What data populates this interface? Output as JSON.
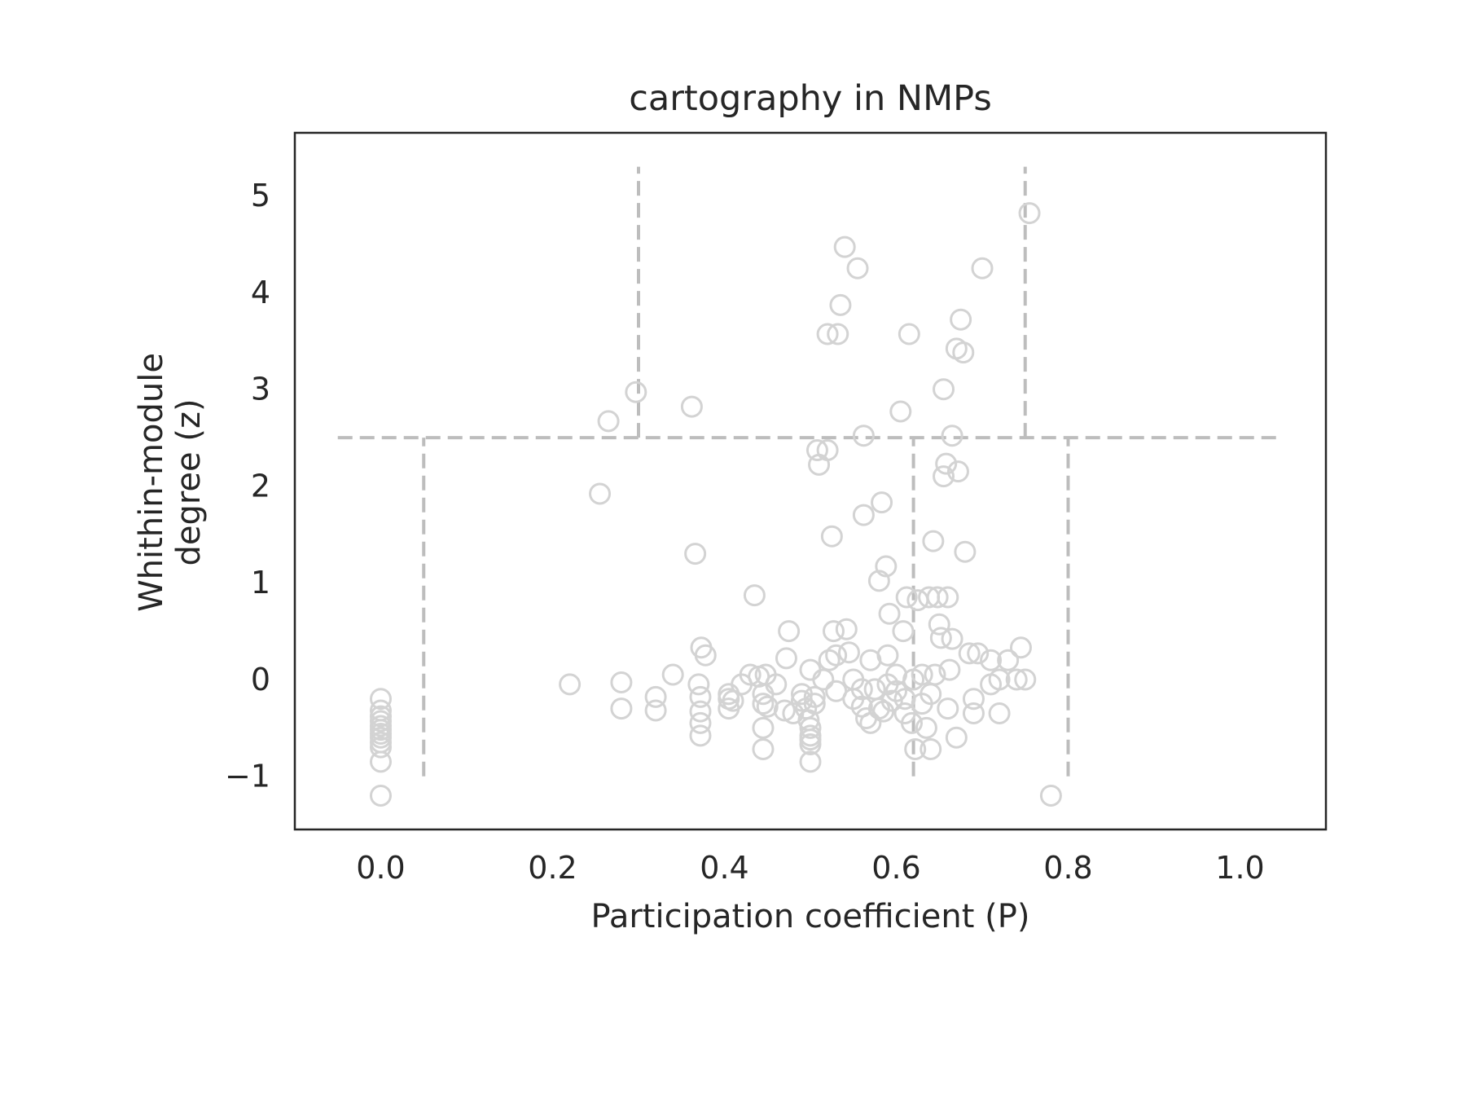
{
  "chart_data": {
    "type": "scatter",
    "title": "cartography in NMPs",
    "xlabel": "Participation coefficient (P)",
    "ylabel_lines": [
      "Whithin-module",
      "degree (z)"
    ],
    "xlim": [
      -0.1,
      1.1
    ],
    "ylim": [
      -1.55,
      5.65
    ],
    "xticks": [
      0.0,
      0.2,
      0.4,
      0.6,
      0.8,
      1.0
    ],
    "xtick_labels": [
      "0.0",
      "0.2",
      "0.4",
      "0.6",
      "0.8",
      "1.0"
    ],
    "yticks": [
      -1,
      0,
      1,
      2,
      3,
      4,
      5
    ],
    "ytick_labels": [
      "−1",
      "0",
      "1",
      "2",
      "3",
      "4",
      "5"
    ],
    "grid": false,
    "marker": "open-circle",
    "point_color": "#d3d3d3",
    "guide_color": "#bdbdbd",
    "guide_lines": [
      {
        "orientation": "horizontal",
        "y": 2.5,
        "x_from": -0.05,
        "x_to": 1.05
      },
      {
        "orientation": "vertical",
        "x": 0.05,
        "y_from": -1.0,
        "y_to": 2.5
      },
      {
        "orientation": "vertical",
        "x": 0.62,
        "y_from": -1.0,
        "y_to": 2.5
      },
      {
        "orientation": "vertical",
        "x": 0.8,
        "y_from": -1.0,
        "y_to": 2.5
      },
      {
        "orientation": "vertical",
        "x": 0.3,
        "y_from": 2.5,
        "y_to": 5.3
      },
      {
        "orientation": "vertical",
        "x": 0.75,
        "y_from": 2.5,
        "y_to": 5.3
      }
    ],
    "points": [
      [
        0.0,
        -0.2
      ],
      [
        0.0,
        -0.32
      ],
      [
        0.0,
        -0.38
      ],
      [
        0.0,
        -0.43
      ],
      [
        0.0,
        -0.48
      ],
      [
        0.0,
        -0.52
      ],
      [
        0.0,
        -0.56
      ],
      [
        0.0,
        -0.6
      ],
      [
        0.0,
        -0.65
      ],
      [
        0.0,
        -0.7
      ],
      [
        0.0,
        -0.85
      ],
      [
        0.0,
        -1.2
      ],
      [
        0.22,
        -0.05
      ],
      [
        0.255,
        1.92
      ],
      [
        0.265,
        2.67
      ],
      [
        0.28,
        -0.03
      ],
      [
        0.28,
        -0.3
      ],
      [
        0.297,
        2.97
      ],
      [
        0.32,
        -0.18
      ],
      [
        0.32,
        -0.32
      ],
      [
        0.34,
        0.05
      ],
      [
        0.362,
        2.82
      ],
      [
        0.366,
        1.3
      ],
      [
        0.37,
        -0.05
      ],
      [
        0.372,
        -0.18
      ],
      [
        0.372,
        -0.33
      ],
      [
        0.372,
        -0.45
      ],
      [
        0.372,
        -0.58
      ],
      [
        0.373,
        0.33
      ],
      [
        0.378,
        0.25
      ],
      [
        0.405,
        -0.15
      ],
      [
        0.405,
        -0.2
      ],
      [
        0.405,
        -0.3
      ],
      [
        0.41,
        -0.22
      ],
      [
        0.42,
        -0.05
      ],
      [
        0.43,
        0.05
      ],
      [
        0.435,
        0.87
      ],
      [
        0.44,
        0.03
      ],
      [
        0.445,
        -0.15
      ],
      [
        0.445,
        -0.25
      ],
      [
        0.445,
        -0.5
      ],
      [
        0.445,
        -0.72
      ],
      [
        0.448,
        0.05
      ],
      [
        0.45,
        -0.28
      ],
      [
        0.46,
        -0.05
      ],
      [
        0.47,
        -0.32
      ],
      [
        0.472,
        0.22
      ],
      [
        0.475,
        0.5
      ],
      [
        0.48,
        -0.35
      ],
      [
        0.49,
        -0.15
      ],
      [
        0.49,
        -0.22
      ],
      [
        0.495,
        -0.3
      ],
      [
        0.498,
        -0.42
      ],
      [
        0.5,
        -0.5
      ],
      [
        0.5,
        -0.58
      ],
      [
        0.5,
        -0.62
      ],
      [
        0.5,
        -0.67
      ],
      [
        0.5,
        -0.85
      ],
      [
        0.5,
        0.1
      ],
      [
        0.505,
        -0.18
      ],
      [
        0.505,
        -0.25
      ],
      [
        0.508,
        2.37
      ],
      [
        0.51,
        2.22
      ],
      [
        0.515,
        0.0
      ],
      [
        0.52,
        2.37
      ],
      [
        0.52,
        3.57
      ],
      [
        0.522,
        0.2
      ],
      [
        0.525,
        1.48
      ],
      [
        0.527,
        0.5
      ],
      [
        0.53,
        0.25
      ],
      [
        0.53,
        -0.12
      ],
      [
        0.532,
        3.57
      ],
      [
        0.535,
        3.87
      ],
      [
        0.54,
        4.47
      ],
      [
        0.542,
        0.52
      ],
      [
        0.545,
        0.28
      ],
      [
        0.55,
        0.0
      ],
      [
        0.55,
        -0.2
      ],
      [
        0.555,
        4.25
      ],
      [
        0.56,
        -0.28
      ],
      [
        0.562,
        2.52
      ],
      [
        0.562,
        1.7
      ],
      [
        0.565,
        -0.4
      ],
      [
        0.57,
        0.2
      ],
      [
        0.575,
        -0.1
      ],
      [
        0.58,
        1.02
      ],
      [
        0.583,
        1.83
      ],
      [
        0.585,
        -0.33
      ],
      [
        0.588,
        1.17
      ],
      [
        0.59,
        0.25
      ],
      [
        0.592,
        0.68
      ],
      [
        0.595,
        -0.22
      ],
      [
        0.6,
        -0.12
      ],
      [
        0.605,
        2.77
      ],
      [
        0.608,
        0.5
      ],
      [
        0.61,
        -0.35
      ],
      [
        0.612,
        0.85
      ],
      [
        0.615,
        3.57
      ],
      [
        0.618,
        -0.45
      ],
      [
        0.62,
        0.0
      ],
      [
        0.622,
        -0.72
      ],
      [
        0.625,
        0.82
      ],
      [
        0.63,
        -0.25
      ],
      [
        0.635,
        -0.5
      ],
      [
        0.638,
        0.85
      ],
      [
        0.64,
        -0.72
      ],
      [
        0.643,
        1.43
      ],
      [
        0.645,
        0.05
      ],
      [
        0.648,
        0.85
      ],
      [
        0.65,
        0.57
      ],
      [
        0.652,
        0.43
      ],
      [
        0.655,
        2.1
      ],
      [
        0.655,
        3.0
      ],
      [
        0.658,
        2.23
      ],
      [
        0.66,
        0.85
      ],
      [
        0.662,
        0.1
      ],
      [
        0.665,
        0.42
      ],
      [
        0.665,
        2.52
      ],
      [
        0.67,
        3.42
      ],
      [
        0.672,
        2.15
      ],
      [
        0.675,
        3.72
      ],
      [
        0.678,
        3.38
      ],
      [
        0.68,
        1.32
      ],
      [
        0.685,
        0.27
      ],
      [
        0.69,
        -0.35
      ],
      [
        0.695,
        0.27
      ],
      [
        0.7,
        4.25
      ],
      [
        0.71,
        -0.05
      ],
      [
        0.72,
        -0.35
      ],
      [
        0.73,
        0.2
      ],
      [
        0.745,
        0.33
      ],
      [
        0.755,
        4.82
      ],
      [
        0.78,
        -1.2
      ],
      [
        0.56,
        -0.1
      ],
      [
        0.57,
        -0.45
      ],
      [
        0.58,
        -0.3
      ],
      [
        0.59,
        -0.05
      ],
      [
        0.6,
        0.05
      ],
      [
        0.61,
        -0.2
      ],
      [
        0.63,
        0.05
      ],
      [
        0.64,
        -0.15
      ],
      [
        0.66,
        -0.3
      ],
      [
        0.67,
        -0.6
      ],
      [
        0.69,
        -0.2
      ],
      [
        0.72,
        0.0
      ],
      [
        0.74,
        0.0
      ],
      [
        0.75,
        0.0
      ],
      [
        0.71,
        0.2
      ]
    ]
  }
}
